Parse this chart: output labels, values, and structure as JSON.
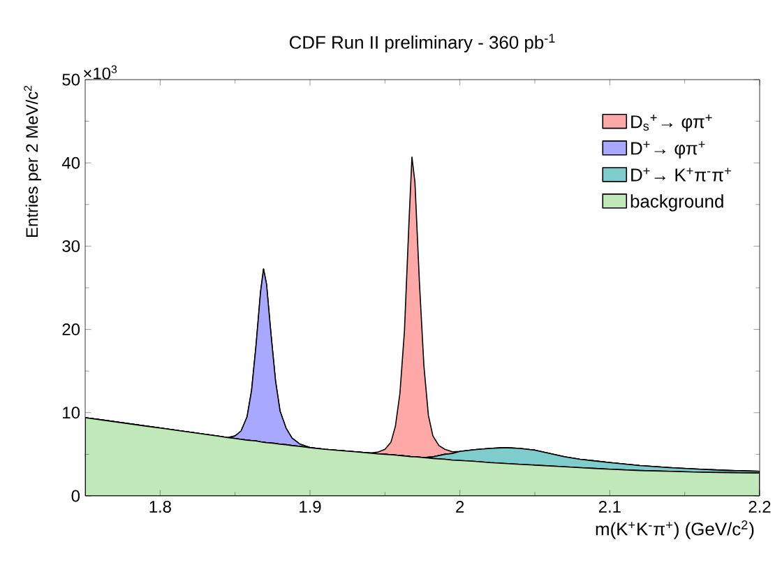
{
  "chart_data": {
    "type": "area",
    "stacked": true,
    "title": "CDF Run II preliminary - 360 pb$^{-1}$",
    "xlabel": "m(K$^{+}$K$^{-}$π$^{+}$)   (GeV/c$^{2}$)",
    "ylabel": "Entries per 2 MeV/c$^{2}$",
    "annotations": [
      "×10$^{3}$"
    ],
    "x": [
      1.75,
      1.76,
      1.77,
      1.78,
      1.79,
      1.8,
      1.81,
      1.82,
      1.83,
      1.84,
      1.845,
      1.85,
      1.854,
      1.858,
      1.861,
      1.864,
      1.867,
      1.869,
      1.871,
      1.874,
      1.877,
      1.88,
      1.884,
      1.888,
      1.893,
      1.9,
      1.91,
      1.92,
      1.93,
      1.94,
      1.945,
      1.95,
      1.954,
      1.957,
      1.96,
      1.963,
      1.966,
      1.968,
      1.97,
      1.973,
      1.976,
      1.979,
      1.982,
      1.986,
      1.99,
      1.995,
      2.0,
      2.01,
      2.02,
      2.03,
      2.04,
      2.05,
      2.06,
      2.07,
      2.08,
      2.09,
      2.1,
      2.12,
      2.14,
      2.16,
      2.18,
      2.2
    ],
    "series": [
      {
        "name": "background",
        "color": "#c0e8b8",
        "values": [
          9.4,
          9.15,
          8.9,
          8.65,
          8.4,
          8.15,
          7.9,
          7.65,
          7.4,
          7.15,
          7.0,
          6.9,
          6.8,
          6.7,
          6.65,
          6.6,
          6.5,
          6.45,
          6.4,
          6.35,
          6.3,
          6.2,
          6.15,
          6.05,
          5.95,
          5.8,
          5.6,
          5.45,
          5.3,
          5.15,
          5.05,
          5.0,
          4.95,
          4.9,
          4.85,
          4.8,
          4.75,
          4.7,
          4.7,
          4.65,
          4.6,
          4.55,
          4.5,
          4.45,
          4.4,
          4.3,
          4.25,
          4.15,
          4.0,
          3.9,
          3.8,
          3.7,
          3.6,
          3.5,
          3.4,
          3.3,
          3.2,
          3.05,
          2.95,
          2.85,
          2.8,
          2.75
        ]
      },
      {
        "name": "D$^{+}$→ K$^{+}$π$^{-}$π$^{+}$",
        "color": "#7fcccc",
        "values": [
          0,
          0,
          0,
          0,
          0,
          0,
          0,
          0,
          0,
          0,
          0,
          0,
          0,
          0,
          0,
          0,
          0,
          0,
          0,
          0,
          0,
          0,
          0,
          0,
          0,
          0,
          0,
          0,
          0,
          0,
          0,
          0,
          0,
          0,
          0,
          0,
          0,
          0,
          0,
          0,
          0,
          0.1,
          0.2,
          0.4,
          0.6,
          0.8,
          1.1,
          1.4,
          1.7,
          1.9,
          1.9,
          1.8,
          1.5,
          1.2,
          1.0,
          0.9,
          0.8,
          0.6,
          0.45,
          0.35,
          0.25,
          0.2
        ]
      },
      {
        "name": "D$^{+}$→ φπ$^{+}$",
        "color": "#a8a8ff",
        "values": [
          0,
          0,
          0,
          0,
          0,
          0,
          0,
          0,
          0,
          0,
          0,
          0.3,
          1.0,
          2.8,
          6,
          11.5,
          18,
          20.8,
          19,
          13,
          7.5,
          4,
          2,
          0.9,
          0.3,
          0,
          0,
          0,
          0,
          0,
          0,
          0,
          0,
          0,
          0,
          0,
          0,
          0,
          0,
          0,
          0,
          0,
          0,
          0,
          0,
          0,
          0,
          0,
          0,
          0,
          0,
          0,
          0,
          0,
          0,
          0,
          0,
          0,
          0,
          0,
          0,
          0
        ]
      },
      {
        "name": "D$_{s}$$^{+}$→ φπ$^{+}$",
        "color": "#ffa8a8",
        "values": [
          0,
          0,
          0,
          0,
          0,
          0,
          0,
          0,
          0,
          0,
          0,
          0,
          0,
          0,
          0,
          0,
          0,
          0,
          0,
          0,
          0,
          0,
          0,
          0,
          0,
          0,
          0,
          0,
          0,
          0,
          0.2,
          0.6,
          1.5,
          3.5,
          7.5,
          15,
          28,
          36,
          33,
          21,
          11,
          5,
          2.5,
          1.2,
          0.6,
          0.2,
          0,
          0,
          0,
          0,
          0,
          0,
          0,
          0,
          0,
          0,
          0,
          0,
          0,
          0,
          0,
          0
        ]
      }
    ],
    "xlim": [
      1.75,
      2.2
    ],
    "xticks": [
      1.8,
      1.9,
      2,
      2.1,
      2.2
    ],
    "ylim": [
      0,
      50
    ],
    "yticks": [
      0,
      10,
      20,
      30,
      40,
      50
    ],
    "legend": "top right"
  }
}
